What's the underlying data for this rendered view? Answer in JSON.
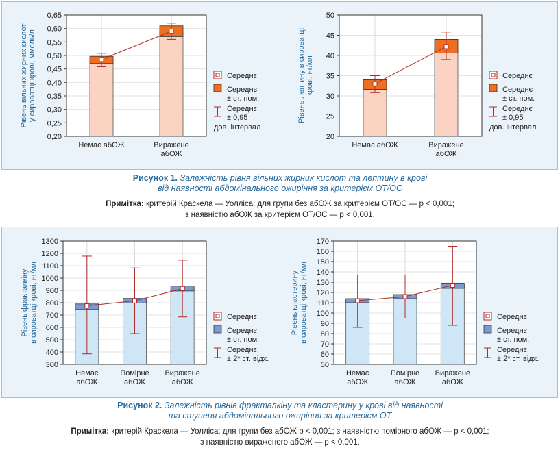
{
  "colors": {
    "panel_bg": "#eaf3f9",
    "panel_border": "#9cc3dd",
    "fig1_bar_fill": "#fbd3c2",
    "fig1_se_fill": "#ee6f22",
    "fig2_bar_fill": "#cfe6f7",
    "fig2_se_fill": "#7b9bd0",
    "whisker": "#b22b2b",
    "caption_text": "#2a6a9c",
    "axis_label_text": "#2a6a9c"
  },
  "figure1": {
    "caption_label": "Рисунок 1.",
    "caption_text_line1": "Залежність рівня вільних жирних кислот та лептину в крові",
    "caption_text_line2": "від наявності абдомінального ожиріння за критерієм ОТ/ОС",
    "note_label": "Примітка:",
    "note_line1": "критерій Краскела — Уолліса: для групи без абОЖ за критерієм ОТ/ОС — p < 0,001;",
    "note_line2": "з наявністю абОЖ за критерієм ОТ/ОС — p < 0,001.",
    "legend": {
      "mean": "Середнє",
      "se_line1": "Середнє",
      "se_line2": "± ст. пом.",
      "ci_line1": "Середнє",
      "ci_line2": "± 0,95",
      "ci_line3": "дов. інтервал"
    }
  },
  "figure2": {
    "caption_label": "Рисунок 2.",
    "caption_text_line1": "Залежність рівнів фракталкіну та кластерину у крові від наявності",
    "caption_text_line2": "та ступеня абдомінального ожиріння за критерієм ОТ",
    "note_label": "Примітка:",
    "note_line1": "критерій Краскела — Уолліса: для групи без абОЖ p < 0,001; з наявністю помірного абОЖ — p < 0,001;",
    "note_line2": "з наявністю вираженого абОЖ — p < 0,001.",
    "legend": {
      "mean": "Середнє",
      "se_line1": "Середнє",
      "se_line2": "± ст. пом.",
      "sd_line1": "Середнє",
      "sd_line2": "± 2* ст. відх."
    }
  },
  "chart_data": [
    {
      "type": "bar",
      "id": "ffa",
      "ylabel": [
        "Рівень вільних жирних кислот",
        "у сироватці крові, ммоль/л"
      ],
      "categories": [
        [
          "Немає  абОЖ"
        ],
        [
          "Виражене",
          "абОЖ"
        ]
      ],
      "ylim": [
        0.2,
        0.65
      ],
      "yticks": [
        "0,20",
        "0,25",
        "0,30",
        "0,35",
        "0,40",
        "0,45",
        "0,50",
        "0,55",
        "0,60",
        "0,65"
      ],
      "ytick_values": [
        0.2,
        0.25,
        0.3,
        0.35,
        0.4,
        0.45,
        0.5,
        0.55,
        0.6,
        0.65
      ],
      "mean": [
        0.485,
        0.59
      ],
      "se_low": [
        0.47,
        0.57
      ],
      "se_high": [
        0.497,
        0.61
      ],
      "whisker_low": [
        0.458,
        0.56
      ],
      "whisker_high": [
        0.508,
        0.62
      ]
    },
    {
      "type": "bar",
      "id": "leptin",
      "ylabel": [
        "Рівень  лептину  в сироватці",
        "крові, нг/мл"
      ],
      "categories": [
        [
          "Немає   абОЖ"
        ],
        [
          "Виражене",
          "абОЖ"
        ]
      ],
      "ylim": [
        20,
        50
      ],
      "yticks": [
        "20",
        "25",
        "30",
        "35",
        "40",
        "45",
        "50"
      ],
      "ytick_values": [
        20,
        25,
        30,
        35,
        40,
        45,
        50
      ],
      "mean": [
        33.0,
        42.2
      ],
      "se_low": [
        31.6,
        40.6
      ],
      "se_high": [
        34.0,
        44.0
      ],
      "whisker_low": [
        30.8,
        39.0
      ],
      "whisker_high": [
        35.0,
        45.8
      ]
    },
    {
      "type": "bar",
      "id": "fractalkine",
      "ylabel": [
        "Рівень  фракталкіну",
        "в сироватці  крові,  нг/мл"
      ],
      "categories": [
        [
          "Немає",
          "абОЖ"
        ],
        [
          "Помірне",
          "абОЖ"
        ],
        [
          "Виражене",
          "абОЖ"
        ]
      ],
      "ylim": [
        300,
        1300
      ],
      "yticks": [
        "300",
        "400",
        "500",
        "600",
        "700",
        "800",
        "900",
        "1000",
        "1100",
        "1200",
        "1300"
      ],
      "ytick_values": [
        300,
        400,
        500,
        600,
        700,
        800,
        900,
        1000,
        1100,
        1200,
        1300
      ],
      "mean": [
        775,
        815,
        915
      ],
      "se_low": [
        745,
        798,
        895
      ],
      "se_high": [
        790,
        835,
        935
      ],
      "whisker_low": [
        385,
        550,
        685
      ],
      "whisker_high": [
        1178,
        1082,
        1145
      ]
    },
    {
      "type": "bar",
      "id": "clusterin",
      "ylabel": [
        "Рівень  кластерину",
        "в сироватці  крові,  нг/мл"
      ],
      "categories": [
        [
          "Немає",
          "абОЖ"
        ],
        [
          "Помірне",
          "абОЖ"
        ],
        [
          "Виражене",
          "абОЖ"
        ]
      ],
      "ylim": [
        50,
        170
      ],
      "yticks": [
        "50",
        "60",
        "70",
        "80",
        "90",
        "100",
        "110",
        "120",
        "130",
        "140",
        "150",
        "160",
        "170"
      ],
      "ytick_values": [
        50,
        60,
        70,
        80,
        90,
        100,
        110,
        120,
        130,
        140,
        150,
        160,
        170
      ],
      "mean": [
        112,
        116,
        127
      ],
      "se_low": [
        110,
        114,
        124
      ],
      "se_high": [
        114,
        118,
        129
      ],
      "whisker_low": [
        86,
        95,
        88
      ],
      "whisker_high": [
        137,
        137,
        165
      ]
    }
  ]
}
